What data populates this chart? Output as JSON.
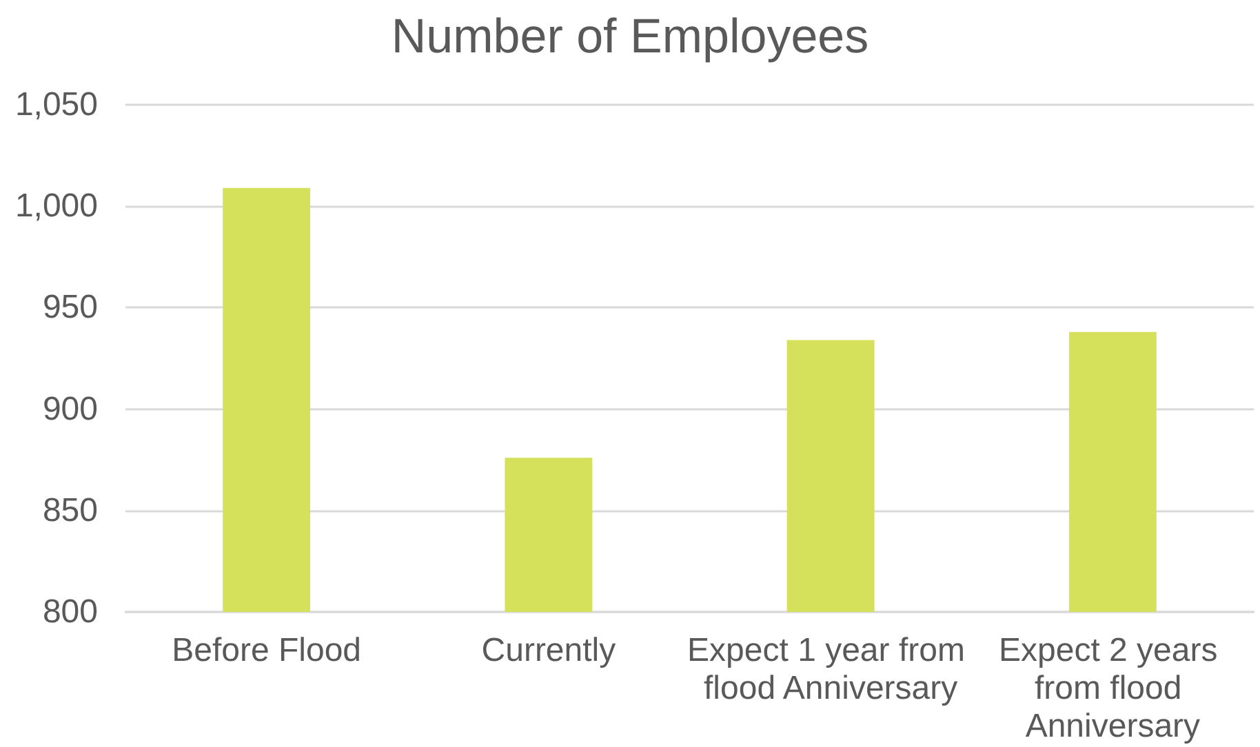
{
  "chart_data": {
    "type": "bar",
    "title": "Number of Employees",
    "categories": [
      "Before Flood",
      "Currently",
      "Expect 1 year from flood Anniversary",
      "Expect 2 years from flood Anniversary"
    ],
    "values": [
      1009,
      876,
      934,
      938
    ],
    "color": "#d5e05b",
    "ylim": [
      800,
      1050
    ],
    "yticks": [
      800,
      850,
      900,
      950,
      {
        "value": 1000,
        "label": "1,000"
      },
      {
        "value": 1050,
        "label": "1,050"
      }
    ],
    "grid": "y"
  }
}
